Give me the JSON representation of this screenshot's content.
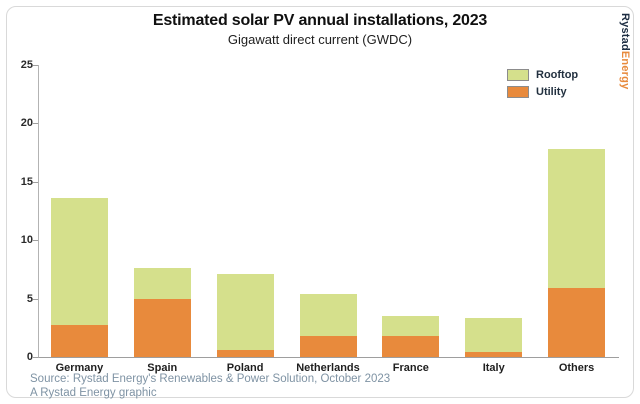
{
  "branding": {
    "logo_part1": "Rystad",
    "logo_part2": "Energy",
    "navy": "#1d2d42",
    "orange": "#e88a3c"
  },
  "footer": {
    "source_line1": "Source: Rystad Energy's Renewables & Power Solution, October 2023",
    "source_line2": "A Rystad Energy graphic"
  },
  "chart_data": {
    "type": "bar",
    "stacked": true,
    "title": "Estimated solar PV annual installations, 2023",
    "subtitle": "Gigawatt direct current (GWDC)",
    "xlabel": "",
    "ylabel": "",
    "categories": [
      "Germany",
      "Spain",
      "Poland",
      "Netherlands",
      "France",
      "Italy",
      "Others"
    ],
    "series": [
      {
        "name": "Utility",
        "color": "#e88a3c",
        "values": [
          2.7,
          5.0,
          0.6,
          1.8,
          1.8,
          0.4,
          5.9
        ]
      },
      {
        "name": "Rooftop",
        "color": "#d5e08c",
        "values": [
          10.9,
          2.6,
          6.5,
          3.6,
          1.7,
          2.9,
          11.9
        ]
      }
    ],
    "totals": [
      13.6,
      7.6,
      7.1,
      5.4,
      3.5,
      3.3,
      17.8
    ],
    "ylim": [
      0,
      25
    ],
    "yticks": [
      0,
      5,
      10,
      15,
      20,
      25
    ],
    "grid": false,
    "legend_position": "top-right",
    "legend_order": [
      "Rooftop",
      "Utility"
    ]
  }
}
